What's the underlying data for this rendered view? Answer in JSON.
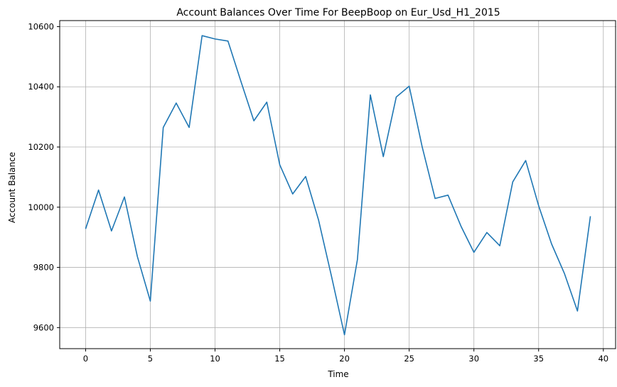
{
  "chart_data": {
    "type": "line",
    "title": "Account Balances Over Time For BeepBoop on Eur_Usd_H1_2015",
    "xlabel": "Time",
    "ylabel": "Account Balance",
    "xlim": [
      -2,
      41
    ],
    "ylim": [
      9530,
      10620
    ],
    "xticks": [
      0,
      5,
      10,
      15,
      20,
      25,
      30,
      35,
      40
    ],
    "yticks": [
      9600,
      9800,
      10000,
      10200,
      10400,
      10600
    ],
    "xtick_labels": [
      "0",
      "5",
      "10",
      "15",
      "20",
      "25",
      "30",
      "35",
      "40"
    ],
    "ytick_labels": [
      "9600",
      "9800",
      "10000",
      "10200",
      "10400",
      "10600"
    ],
    "grid": true,
    "line_color": "#1f77b4",
    "series": [
      {
        "x": [
          0,
          1,
          2,
          3,
          4,
          5,
          6,
          7,
          8,
          9,
          10,
          11,
          12,
          13,
          14,
          15,
          16,
          17,
          18,
          19,
          20,
          21,
          22,
          23,
          24,
          25,
          26,
          27,
          28,
          29,
          30,
          31,
          32,
          33,
          34,
          35,
          36,
          37,
          38,
          39
        ],
        "values": [
          9928,
          10057,
          9921,
          10034,
          9836,
          9688,
          10265,
          10346,
          10265,
          10570,
          10559,
          10552,
          10418,
          10287,
          10349,
          10141,
          10044,
          10102,
          9957,
          9770,
          9576,
          9826,
          10373,
          10168,
          10366,
          10402,
          10201,
          10029,
          10040,
          9937,
          9850,
          9916,
          9872,
          10084,
          10155,
          10005,
          9878,
          9779,
          9655,
          9970
        ]
      }
    ]
  }
}
